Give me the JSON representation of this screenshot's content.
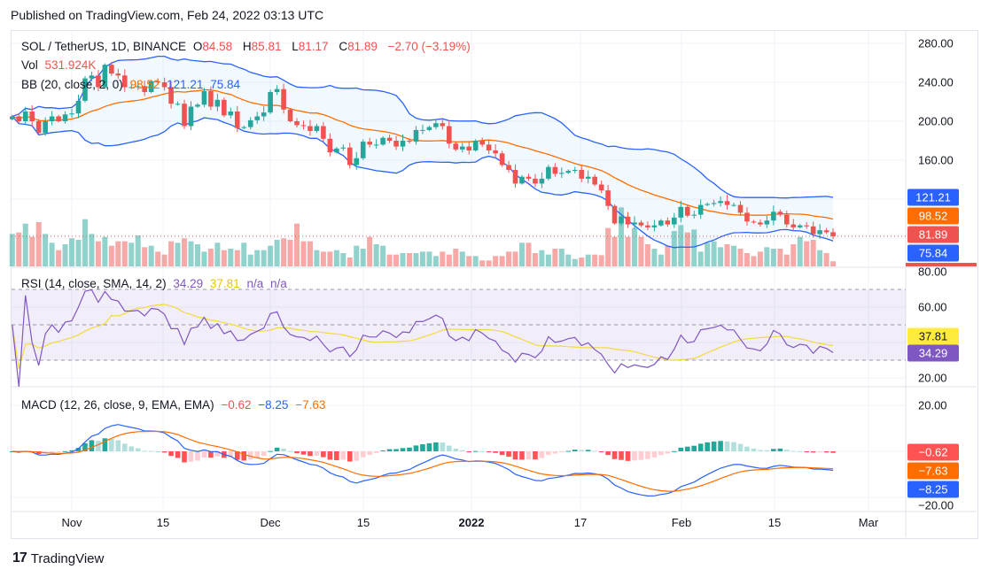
{
  "published": "Published on TradingView.com, Feb 24, 2022 03:13 UTC",
  "brand": "TradingView",
  "legend": {
    "symbol": "SOL / TetherUS, 1D, BINANCE",
    "o_label": "O",
    "o": "84.58",
    "h_label": "H",
    "h": "85.81",
    "l_label": "L",
    "l": "81.17",
    "c_label": "C",
    "c": "81.89",
    "change": "−2.70 (−3.19%)",
    "vol_label": "Vol",
    "vol": "531.924K",
    "bb_label": "BB (20, close, 2, 0)",
    "bb_basis": "98.52",
    "bb_upper": "121.21",
    "bb_lower": "75.84",
    "rsi_label": "RSI (14, close, SMA, 14, 2)",
    "rsi": "34.29",
    "rsi_sma": "37.81",
    "rsi_na1": "n/a",
    "rsi_na2": "n/a",
    "macd_label": "MACD (12, 26, close, 9, EMA, EMA)",
    "macd_hist": "−0.62",
    "macd": "−8.25",
    "macd_signal": "−7.63"
  },
  "axis_tags": {
    "bb_upper": "121.21",
    "bb_basis": "98.52",
    "close": "81.89",
    "bb_lower": "75.84",
    "rsi_sma": "37.81",
    "rsi": "34.29",
    "macd_hist": "−0.62",
    "macd_signal": "−7.63",
    "macd": "−8.25"
  },
  "colors": {
    "up": "#26a69a",
    "down": "#ef5350",
    "bb_band": "#2962ff",
    "bb_basis": "#ff6d00",
    "rsi": "#7e57c2",
    "rsi_sma": "#f2d93b",
    "macd": "#2962ff",
    "signal": "#ff6d00"
  },
  "chart_data": {
    "type": "candlestick",
    "first_date": "2021-10-23",
    "last_date": "2022-02-24",
    "x_ticks": [
      "Nov",
      "15",
      "Dec",
      "15",
      "2022",
      "17",
      "Feb",
      "15",
      "Mar"
    ],
    "price_ticks": [
      "280.00",
      "240.00",
      "200.00",
      "160.00"
    ],
    "rsi_ticks": [
      "80.00",
      "60.00",
      "20.00"
    ],
    "macd_ticks": [
      "20.00",
      "−20.00"
    ],
    "price_range": [
      70,
      285
    ],
    "close": [
      205,
      200,
      210,
      200,
      188,
      200,
      205,
      200,
      207,
      208,
      221,
      244,
      247,
      235,
      258,
      249,
      247,
      235,
      235,
      236,
      230,
      241,
      240,
      235,
      218,
      218,
      195,
      215,
      217,
      231,
      215,
      222,
      206,
      210,
      193,
      194,
      201,
      205,
      209,
      230,
      233,
      212,
      200,
      196,
      195,
      190,
      195,
      182,
      168,
      172,
      173,
      155,
      162,
      179,
      176,
      176,
      183,
      180,
      174,
      180,
      179,
      191,
      191,
      194,
      198,
      195,
      177,
      171,
      174,
      170,
      180,
      176,
      170,
      167,
      155,
      150,
      136,
      143,
      141,
      136,
      141,
      153,
      146,
      147,
      149,
      150,
      141,
      143,
      135,
      129,
      113,
      95,
      102,
      94,
      96,
      93,
      91,
      93,
      98,
      94,
      101,
      112,
      103,
      104,
      114,
      115,
      116,
      118,
      114,
      114,
      106,
      97,
      96,
      94,
      98,
      107,
      104,
      94,
      91,
      93,
      92,
      84,
      88,
      86,
      81.89
    ],
    "volume_k": [
      3410,
      3565,
      4495,
      3100,
      4650,
      3410,
      2480,
      1705,
      2325,
      2945,
      2790,
      4960,
      3410,
      2635,
      3100,
      2170,
      2635,
      2635,
      2480,
      3255,
      2015,
      2170,
      1550,
      1240,
      2635,
      2480,
      2945,
      2635,
      2325,
      1550,
      1860,
      2480,
      1705,
      1860,
      1705,
      2480,
      1240,
      1705,
      1705,
      2170,
      2790,
      2945,
      2790,
      4495,
      2635,
      2635,
      1705,
      1550,
      1550,
      1705,
      1395,
      930,
      2170,
      1860,
      3100,
      2325,
      2170,
      1240,
      1240,
      1395,
      1395,
      1395,
      1550,
      1550,
      1085,
      1550,
      1240,
      1860,
      1550,
      1085,
      1085,
      620,
      620,
      1085,
      1085,
      1550,
      1550,
      2480,
      2480,
      1395,
      1705,
      1240,
      1860,
      1860,
      1240,
      775,
      930,
      1240,
      1240,
      1180,
      4030,
      3100,
      6200,
      3100,
      4030,
      3100,
      2325,
      1860,
      1240,
      2170,
      3720,
      4340,
      3565,
      3875,
      1550,
      2480,
      2635,
      2015,
      2325,
      2170,
      1860,
      1395,
      1085,
      1550,
      2015,
      1860,
      1860,
      1240,
      2325,
      3100,
      2635,
      2790,
      1700,
      1400,
      532
    ],
    "bb": {
      "length": 20,
      "mult": 2
    },
    "rsi": {
      "length": 14,
      "sma": 14,
      "upper_band": 70,
      "lower_band": 30
    },
    "macd": {
      "fast": 12,
      "slow": 26,
      "signal": 9
    }
  }
}
